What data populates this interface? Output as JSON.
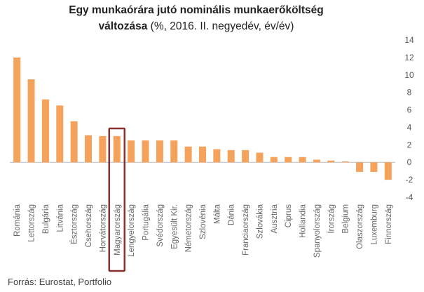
{
  "title": {
    "line1": "Egy munkaórára jutó nominális munkaerőköltség",
    "line2_bold": "változása",
    "line2_rest": " (%, 2016. II. negyedév, év/év)"
  },
  "source": "Forrás: Eurostat, Portfolio",
  "colors": {
    "bar": "#F5A25D",
    "highlight": "#8B2F2F",
    "zero_line": "#bbbbbb"
  },
  "chart_data": {
    "type": "bar",
    "categories": [
      "Románia",
      "Lettország",
      "Bulgária",
      "Litvánia",
      "Észtország",
      "Csehország",
      "Horvátország",
      "Magyarország",
      "Lengyelország",
      "Portugália",
      "Svédország",
      "Egyesült Kir.",
      "Németország",
      "Szlovénia",
      "Málta",
      "Dánia",
      "Franciaország",
      "Szlovákia",
      "Ausztria",
      "Ciprus",
      "Hollandia",
      "Spanyolország",
      "Írország",
      "Belgium",
      "Olaszország",
      "Luxemburg",
      "Finnország"
    ],
    "values": [
      12.0,
      9.5,
      7.2,
      6.5,
      4.7,
      3.1,
      3.0,
      3.0,
      2.5,
      2.5,
      2.5,
      2.5,
      1.8,
      1.8,
      1.5,
      1.4,
      1.4,
      1.1,
      0.6,
      0.6,
      0.6,
      0.3,
      0.2,
      0.1,
      -1.1,
      -1.1,
      -2.0
    ],
    "highlight": "Magyarország",
    "yticks": [
      -4,
      -2,
      0,
      2,
      4,
      6,
      8,
      10,
      12,
      14
    ],
    "ylim": [
      -4,
      14
    ],
    "y_axis_side": "right",
    "grid": false,
    "title": "Egy munkaórára jutó nominális munkaerőköltség változása (%, 2016. II. negyedév, év/év)"
  }
}
